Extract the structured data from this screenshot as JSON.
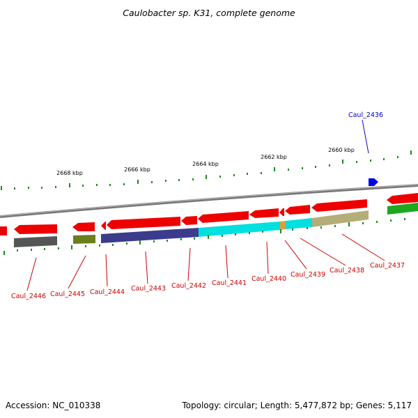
{
  "title": "Caulobacter sp. K31, complete genome",
  "accession": "Accession: NC_010338",
  "summary": "Topology: circular; Length: 5,477,872 bp; Genes: 5,117",
  "colors": {
    "gene_forward": "#0000ee",
    "gene_reverse": "#ff0000",
    "label_forward": "#0000cc",
    "label_reverse": "#cc0000",
    "backbone": "#888888",
    "tick": "#1a8a1a"
  },
  "scale_labels": [
    "2668 kbp",
    "2666 kbp",
    "2664 kbp",
    "2662 kbp",
    "2660 kbp"
  ],
  "gene_labels": [
    {
      "id": "Caul_2436",
      "strand": "forward"
    },
    {
      "id": "Caul_2437",
      "strand": "reverse"
    },
    {
      "id": "Caul_2438",
      "strand": "reverse"
    },
    {
      "id": "Caul_2439",
      "strand": "reverse"
    },
    {
      "id": "Caul_2440",
      "strand": "reverse"
    },
    {
      "id": "Caul_2441",
      "strand": "reverse"
    },
    {
      "id": "Caul_2442",
      "strand": "reverse"
    },
    {
      "id": "Caul_2443",
      "strand": "reverse"
    },
    {
      "id": "Caul_2444",
      "strand": "reverse"
    },
    {
      "id": "Caul_2445",
      "strand": "reverse"
    },
    {
      "id": "Caul_2446",
      "strand": "reverse"
    }
  ]
}
